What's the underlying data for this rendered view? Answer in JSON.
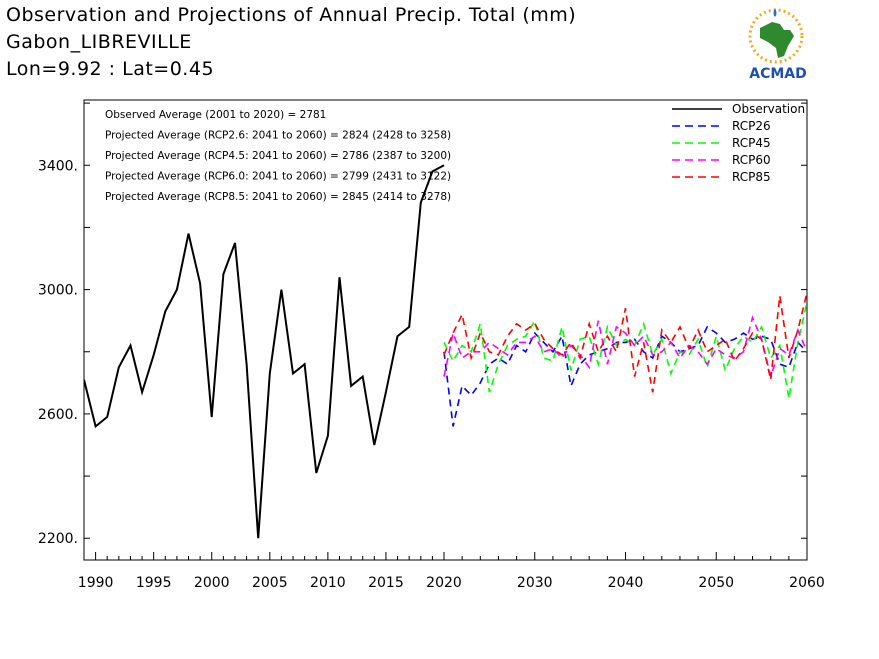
{
  "header": {
    "title_line1": "Observation and Projections of Annual Precip. Total (mm)",
    "title_line2": "Gabon_LIBREVILLE",
    "title_line3": "Lon=9.92 : Lat=0.45"
  },
  "logo": {
    "text": "ACMAD",
    "icon": "africa-map-logo-icon"
  },
  "chart_data": {
    "type": "line",
    "ylim": [
      2130,
      3610
    ],
    "y_ticks": [
      2200,
      2600,
      3000,
      3400
    ],
    "y_tick_labels": [
      "2200.",
      "2600.",
      "3000.",
      "3400."
    ],
    "x_ticks_left": [
      1990,
      1995,
      2000,
      2005,
      2010,
      2015,
      2020
    ],
    "x_ticks_right": [
      2020,
      2030,
      2040,
      2050,
      2060
    ],
    "annotations": [
      "Observed Average (2001 to 2020) = 2781",
      "Projected Average (RCP2.6: 2041 to 2060) = 2824 (2428 to 3258)",
      "Projected Average (RCP4.5: 2041 to 2060) = 2786 (2387 to 3200)",
      "Projected Average (RCP6.0: 2041 to 2060) = 2799 (2431 to 3122)",
      "Projected Average (RCP8.5: 2041 to 2060) = 2845 (2414 to 3278)"
    ],
    "legend": [
      {
        "name": "Observation",
        "color": "#000000",
        "dash": "solid"
      },
      {
        "name": "RCP26",
        "color": "#0000ff",
        "dash": "dashed"
      },
      {
        "name": "RCP45",
        "color": "#00ff00",
        "dash": "dashed"
      },
      {
        "name": "RCP60",
        "color": "#ff00ff",
        "dash": "dashed"
      },
      {
        "name": "RCP85",
        "color": "#ff0000",
        "dash": "dashed"
      }
    ],
    "series": [
      {
        "name": "Observation",
        "color": "#000000",
        "x": [
          1989,
          1990,
          1991,
          1992,
          1993,
          1994,
          1995,
          1996,
          1997,
          1998,
          1999,
          2000,
          2001,
          2002,
          2003,
          2004,
          2005,
          2006,
          2007,
          2008,
          2009,
          2010,
          2011,
          2012,
          2013,
          2014,
          2015,
          2016,
          2017,
          2018,
          2019,
          2020
        ],
        "values": [
          2710,
          2560,
          2590,
          2750,
          2820,
          2670,
          2790,
          2930,
          3000,
          3180,
          3020,
          2590,
          3050,
          3150,
          2760,
          2200,
          2730,
          3000,
          2730,
          2760,
          2410,
          2530,
          3040,
          2690,
          2720,
          2500,
          2670,
          2850,
          2880,
          3280,
          3380,
          3400
        ]
      },
      {
        "name": "RCP26",
        "color": "#0000ff",
        "x": [
          2020,
          2021,
          2022,
          2023,
          2024,
          2025,
          2026,
          2027,
          2028,
          2029,
          2030,
          2031,
          2032,
          2033,
          2034,
          2035,
          2036,
          2037,
          2038,
          2039,
          2040,
          2041,
          2042,
          2043,
          2044,
          2045,
          2046,
          2047,
          2048,
          2049,
          2050,
          2051,
          2052,
          2053,
          2054,
          2055,
          2056,
          2057,
          2058,
          2059,
          2060
        ],
        "values": [
          2800,
          2560,
          2690,
          2660,
          2700,
          2760,
          2780,
          2760,
          2820,
          2800,
          2860,
          2830,
          2800,
          2850,
          2690,
          2760,
          2790,
          2800,
          2810,
          2830,
          2830,
          2840,
          2800,
          2780,
          2850,
          2830,
          2800,
          2810,
          2820,
          2880,
          2860,
          2830,
          2840,
          2860,
          2840,
          2850,
          2840,
          2760,
          2750,
          2830,
          2800
        ]
      },
      {
        "name": "RCP45",
        "color": "#00ff00",
        "x": [
          2020,
          2021,
          2022,
          2023,
          2024,
          2025,
          2026,
          2027,
          2028,
          2029,
          2030,
          2031,
          2032,
          2033,
          2034,
          2035,
          2036,
          2037,
          2038,
          2039,
          2040,
          2041,
          2042,
          2043,
          2044,
          2045,
          2046,
          2047,
          2048,
          2049,
          2050,
          2051,
          2052,
          2053,
          2054,
          2055,
          2056,
          2057,
          2058,
          2059,
          2060
        ],
        "values": [
          2830,
          2770,
          2820,
          2800,
          2890,
          2670,
          2760,
          2820,
          2840,
          2850,
          2900,
          2780,
          2770,
          2880,
          2740,
          2840,
          2850,
          2760,
          2880,
          2820,
          2840,
          2820,
          2890,
          2790,
          2840,
          2730,
          2800,
          2790,
          2840,
          2750,
          2850,
          2740,
          2810,
          2850,
          2830,
          2880,
          2780,
          2820,
          2650,
          2830,
          2960
        ]
      },
      {
        "name": "RCP60",
        "color": "#ff00ff",
        "x": [
          2020,
          2021,
          2022,
          2023,
          2024,
          2025,
          2026,
          2027,
          2028,
          2029,
          2030,
          2031,
          2032,
          2033,
          2034,
          2035,
          2036,
          2037,
          2038,
          2039,
          2040,
          2041,
          2042,
          2043,
          2044,
          2045,
          2046,
          2047,
          2048,
          2049,
          2050,
          2051,
          2052,
          2053,
          2054,
          2055,
          2056,
          2057,
          2058,
          2059,
          2060
        ],
        "values": [
          2720,
          2860,
          2780,
          2800,
          2800,
          2830,
          2810,
          2790,
          2830,
          2830,
          2850,
          2800,
          2810,
          2780,
          2820,
          2790,
          2750,
          2900,
          2760,
          2880,
          2860,
          2820,
          2850,
          2790,
          2800,
          2830,
          2780,
          2820,
          2800,
          2760,
          2810,
          2790,
          2780,
          2800,
          2910,
          2840,
          2720,
          2810,
          2790,
          2870,
          2800
        ]
      },
      {
        "name": "RCP85",
        "color": "#ff0000",
        "x": [
          2020,
          2021,
          2022,
          2023,
          2024,
          2025,
          2026,
          2027,
          2028,
          2029,
          2030,
          2031,
          2032,
          2033,
          2034,
          2035,
          2036,
          2037,
          2038,
          2039,
          2040,
          2041,
          2042,
          2043,
          2044,
          2045,
          2046,
          2047,
          2048,
          2049,
          2050,
          2051,
          2052,
          2053,
          2054,
          2055,
          2056,
          2057,
          2058,
          2059,
          2060
        ],
        "values": [
          2790,
          2860,
          2920,
          2780,
          2860,
          2800,
          2790,
          2850,
          2890,
          2870,
          2890,
          2840,
          2810,
          2790,
          2830,
          2780,
          2890,
          2800,
          2850,
          2800,
          2940,
          2720,
          2830,
          2670,
          2870,
          2830,
          2880,
          2810,
          2870,
          2800,
          2820,
          2840,
          2770,
          2810,
          2860,
          2840,
          2710,
          2980,
          2780,
          2870,
          2990
        ]
      }
    ]
  }
}
